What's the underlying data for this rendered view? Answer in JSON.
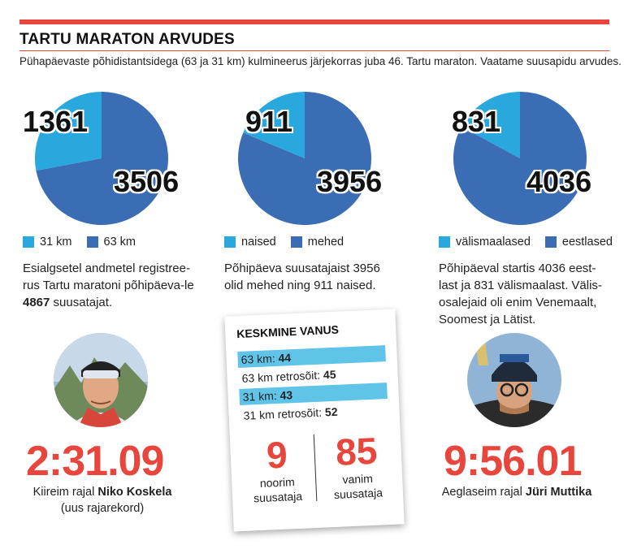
{
  "title": "TARTU MARATON ARVUDES",
  "subtitle": "Pühapäevaste põhidistantsidega (63 ja 31 km) kulmineerus järjekorras juba 46. Tartu maraton. Vaatame suusapidu arvudes.",
  "colors": {
    "accent": "#e8453c",
    "light_blue": "#29a8de",
    "dark_blue": "#3b6db4",
    "highlight": "#5fc4e8"
  },
  "chart_data": [
    {
      "type": "pie",
      "categories": [
        "31 km",
        "63 km"
      ],
      "values": [
        1361,
        3506
      ],
      "value_labels": [
        "1361",
        "3506"
      ],
      "colors": [
        "#29a8de",
        "#3b6db4"
      ],
      "legend": [
        "31 km",
        "63 km"
      ],
      "description_parts": [
        "Esialgsetel andmetel registree-rus Tartu maratoni põhipäeva-le ",
        "4867",
        " suusatajat."
      ]
    },
    {
      "type": "pie",
      "categories": [
        "naised",
        "mehed"
      ],
      "values": [
        911,
        3956
      ],
      "value_labels": [
        "911",
        "3956"
      ],
      "colors": [
        "#29a8de",
        "#3b6db4"
      ],
      "legend": [
        "naised",
        "mehed"
      ],
      "description_parts": [
        "Põhipäeva suusatajaist 3956 olid mehed ning 911 naised."
      ]
    },
    {
      "type": "pie",
      "categories": [
        "välismaalased",
        "eestlased"
      ],
      "values": [
        831,
        4036
      ],
      "value_labels": [
        "831",
        "4036"
      ],
      "colors": [
        "#29a8de",
        "#3b6db4"
      ],
      "legend": [
        "välismaalased",
        "eestlased"
      ],
      "description_parts": [
        "Põhipäeval startis 4036 eest-last ja 831 välismaalast. Välis-osalejaid oli enim Venemaalt, Soomest ja Lätist."
      ]
    }
  ],
  "fastest": {
    "time": "2:31.09",
    "caption_prefix": "Kiireim rajal ",
    "name": "Niko Koskela",
    "note": "(uus rajarekord)"
  },
  "slowest": {
    "time": "9:56.01",
    "caption_prefix": "Aeglaseim rajal ",
    "name": "Jüri Muttika"
  },
  "average_age": {
    "title": "KESKMINE VANUS",
    "rows": [
      {
        "label": "63 km: ",
        "value": "44",
        "highlight": true
      },
      {
        "label": "63 km retrosõit: ",
        "value": "45",
        "highlight": false
      },
      {
        "label": "31 km: ",
        "value": "43",
        "highlight": true
      },
      {
        "label": "31 km retrosõit: ",
        "value": "52",
        "highlight": false
      }
    ],
    "youngest": {
      "value": "9",
      "label_line1": "noorim",
      "label_line2": "suusataja"
    },
    "oldest": {
      "value": "85",
      "label_line1": "vanim",
      "label_line2": "suusataja"
    }
  }
}
